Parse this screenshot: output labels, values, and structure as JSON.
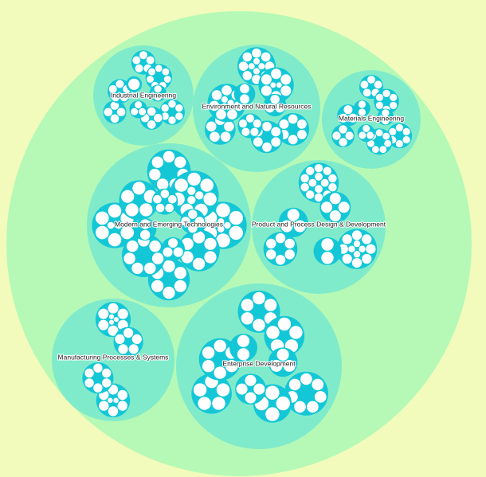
{
  "colors": {
    "background": "#f2fbbb",
    "root": "#b6f9b6",
    "category": "#80ebcb",
    "group": "#14c7d7",
    "leaf": "#ffffff"
  },
  "categories": [
    {
      "label": "Industrial Engineering",
      "groups": [
        [
          5,
          6,
          4
        ],
        [
          7,
          4,
          5
        ],
        [
          2,
          3,
          1
        ]
      ]
    },
    {
      "label": "Environment and Natural Resources",
      "groups": [
        [
          12,
          6,
          5
        ],
        [
          8,
          6,
          10
        ],
        [
          3,
          5,
          2
        ]
      ]
    },
    {
      "label": "Materials Engineering",
      "groups": [
        [
          5,
          6,
          4
        ],
        [
          6,
          7,
          3
        ],
        [
          2,
          3,
          2
        ]
      ]
    },
    {
      "label": "Modern and Emerging Technologies",
      "groups": [
        [
          7,
          9,
          6,
          8
        ],
        [
          10,
          6,
          7,
          5
        ],
        [
          4,
          3,
          2,
          5
        ]
      ]
    },
    {
      "label": "Product and Process Design & Development",
      "groups": [
        [
          14,
          12,
          6
        ],
        [
          4,
          2,
          3
        ]
      ]
    },
    {
      "label": "Manufacturing Processes & Systems",
      "groups": [
        [
          9,
          8
        ],
        [
          5,
          6
        ]
      ]
    },
    {
      "label": "Enterprise Development",
      "groups": [
        [
          6,
          7,
          5
        ],
        [
          5,
          4,
          6
        ],
        [
          3,
          4,
          2
        ]
      ]
    }
  ]
}
